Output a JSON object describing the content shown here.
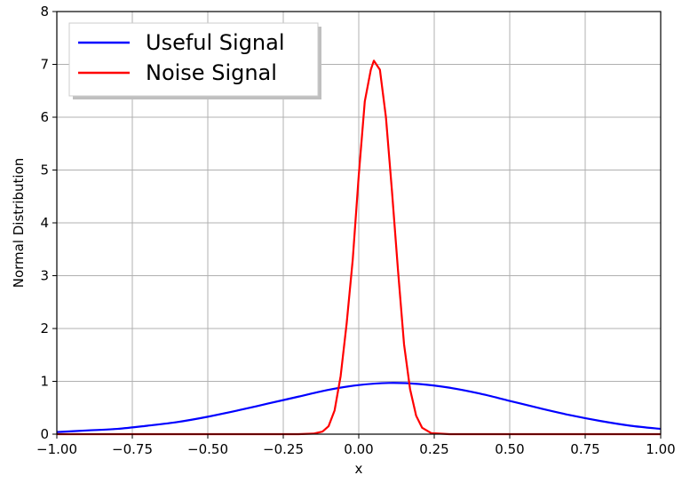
{
  "chart_data": {
    "type": "line",
    "title": "",
    "xlabel": "x",
    "ylabel": "Normal Distribution",
    "xlim": [
      -1.0,
      1.0
    ],
    "ylim": [
      0,
      8
    ],
    "x_ticks": [
      "−1.00",
      "−0.75",
      "−0.50",
      "−0.25",
      "0.00",
      "0.25",
      "0.50",
      "0.75",
      "1.00"
    ],
    "y_ticks": [
      "0",
      "1",
      "2",
      "3",
      "4",
      "5",
      "6",
      "7",
      "8"
    ],
    "grid": true,
    "legend_position": "top-left",
    "series": [
      {
        "name": "Useful Signal",
        "color": "#0000ff",
        "x": [
          -1.0,
          -0.9,
          -0.8,
          -0.7,
          -0.6,
          -0.5,
          -0.4,
          -0.3,
          -0.2,
          -0.1,
          0.0,
          0.1,
          0.2,
          0.3,
          0.4,
          0.5,
          0.6,
          0.7,
          0.8,
          0.9,
          1.0
        ],
        "y": [
          0.04,
          0.07,
          0.1,
          0.16,
          0.23,
          0.33,
          0.45,
          0.58,
          0.71,
          0.84,
          0.93,
          0.97,
          0.95,
          0.88,
          0.77,
          0.63,
          0.49,
          0.36,
          0.25,
          0.16,
          0.1
        ]
      },
      {
        "name": "Noise Signal",
        "color": "#ff0000",
        "x": [
          -1.0,
          -0.2,
          -0.15,
          -0.12,
          -0.1,
          -0.08,
          -0.06,
          -0.04,
          -0.02,
          0.0,
          0.02,
          0.04,
          0.05,
          0.07,
          0.09,
          0.11,
          0.13,
          0.15,
          0.17,
          0.19,
          0.21,
          0.24,
          0.3,
          1.0
        ],
        "y": [
          0,
          0,
          0.01,
          0.05,
          0.15,
          0.45,
          1.1,
          2.1,
          3.3,
          4.9,
          6.3,
          6.9,
          7.07,
          6.9,
          6.0,
          4.6,
          3.1,
          1.7,
          0.85,
          0.35,
          0.12,
          0.02,
          0,
          0
        ]
      }
    ]
  }
}
